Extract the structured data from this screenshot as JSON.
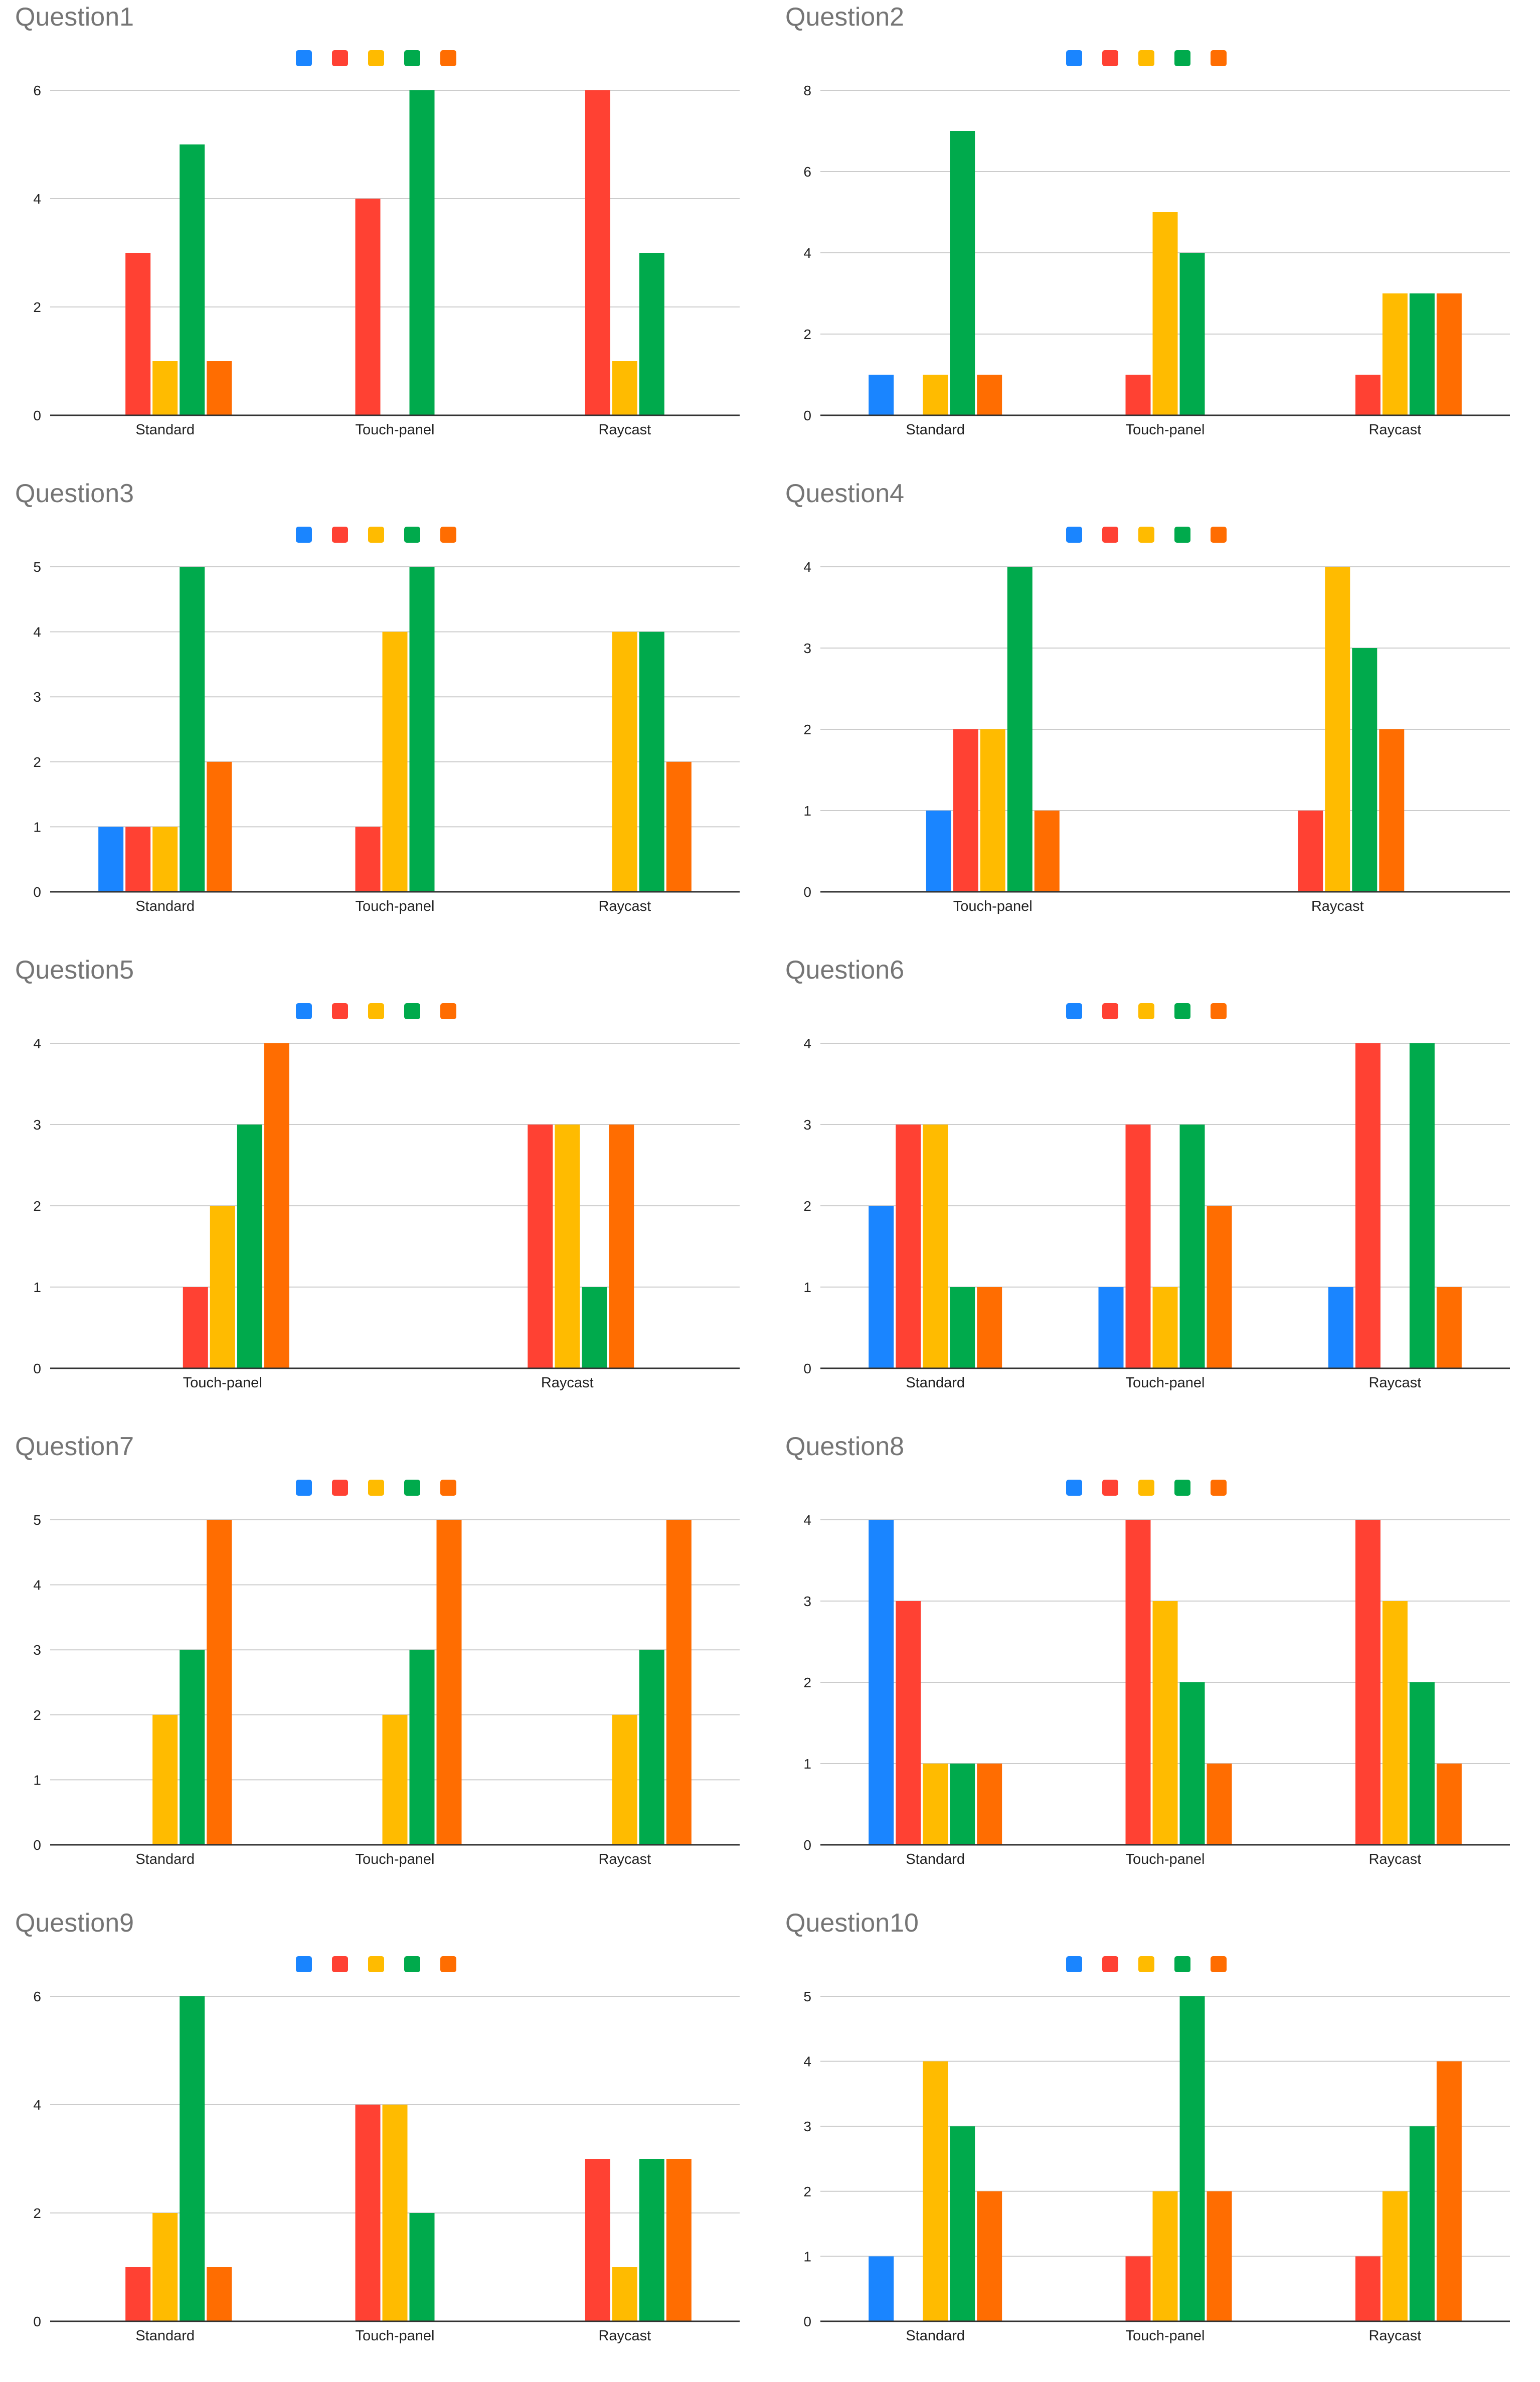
{
  "legend_colors": [
    "#1a85ff",
    "#ff4133",
    "#ffbb00",
    "#00aa4c",
    "#ff6d01"
  ],
  "axis_color": "#333333",
  "grid_color": "#cccccc",
  "chart_data": [
    {
      "type": "bar",
      "title": "Question1",
      "categories": [
        "Standard",
        "Touch-panel",
        "Raycast"
      ],
      "yticks": [
        0,
        2,
        4,
        6
      ],
      "ylim": [
        0,
        6
      ],
      "series": [
        {
          "color": "#1a85ff",
          "values": [
            0,
            0,
            0
          ]
        },
        {
          "color": "#ff4133",
          "values": [
            3,
            4,
            6
          ]
        },
        {
          "color": "#ffbb00",
          "values": [
            1,
            0,
            1
          ]
        },
        {
          "color": "#00aa4c",
          "values": [
            5,
            6,
            3
          ]
        },
        {
          "color": "#ff6d01",
          "values": [
            1,
            0,
            0
          ]
        }
      ]
    },
    {
      "type": "bar",
      "title": "Question2",
      "categories": [
        "Standard",
        "Touch-panel",
        "Raycast"
      ],
      "yticks": [
        0,
        2,
        4,
        6,
        8
      ],
      "ylim": [
        0,
        8
      ],
      "series": [
        {
          "color": "#1a85ff",
          "values": [
            1,
            0,
            0
          ]
        },
        {
          "color": "#ff4133",
          "values": [
            0,
            1,
            1
          ]
        },
        {
          "color": "#ffbb00",
          "values": [
            1,
            5,
            3
          ]
        },
        {
          "color": "#00aa4c",
          "values": [
            7,
            4,
            3
          ]
        },
        {
          "color": "#ff6d01",
          "values": [
            1,
            0,
            3
          ]
        }
      ]
    },
    {
      "type": "bar",
      "title": "Question3",
      "categories": [
        "Standard",
        "Touch-panel",
        "Raycast"
      ],
      "yticks": [
        0,
        1,
        2,
        3,
        4,
        5
      ],
      "ylim": [
        0,
        5
      ],
      "series": [
        {
          "color": "#1a85ff",
          "values": [
            1,
            0,
            0
          ]
        },
        {
          "color": "#ff4133",
          "values": [
            1,
            1,
            0
          ]
        },
        {
          "color": "#ffbb00",
          "values": [
            1,
            4,
            4
          ]
        },
        {
          "color": "#00aa4c",
          "values": [
            5,
            5,
            4
          ]
        },
        {
          "color": "#ff6d01",
          "values": [
            2,
            0,
            2
          ]
        }
      ]
    },
    {
      "type": "bar",
      "title": "Question4",
      "categories": [
        "Touch-panel",
        "Raycast"
      ],
      "yticks": [
        0,
        1,
        2,
        3,
        4
      ],
      "ylim": [
        0,
        4
      ],
      "series": [
        {
          "color": "#1a85ff",
          "values": [
            1,
            0
          ]
        },
        {
          "color": "#ff4133",
          "values": [
            2,
            1
          ]
        },
        {
          "color": "#ffbb00",
          "values": [
            2,
            4
          ]
        },
        {
          "color": "#00aa4c",
          "values": [
            4,
            3
          ]
        },
        {
          "color": "#ff6d01",
          "values": [
            1,
            2
          ]
        }
      ]
    },
    {
      "type": "bar",
      "title": "Question5",
      "categories": [
        "Touch-panel",
        "Raycast"
      ],
      "yticks": [
        0,
        1,
        2,
        3,
        4
      ],
      "ylim": [
        0,
        4
      ],
      "series": [
        {
          "color": "#1a85ff",
          "values": [
            0,
            0
          ]
        },
        {
          "color": "#ff4133",
          "values": [
            1,
            3
          ]
        },
        {
          "color": "#ffbb00",
          "values": [
            2,
            3
          ]
        },
        {
          "color": "#00aa4c",
          "values": [
            3,
            1
          ]
        },
        {
          "color": "#ff6d01",
          "values": [
            4,
            3
          ]
        }
      ]
    },
    {
      "type": "bar",
      "title": "Question6",
      "categories": [
        "Standard",
        "Touch-panel",
        "Raycast"
      ],
      "yticks": [
        0,
        1,
        2,
        3,
        4
      ],
      "ylim": [
        0,
        4
      ],
      "series": [
        {
          "color": "#1a85ff",
          "values": [
            2,
            1,
            1
          ]
        },
        {
          "color": "#ff4133",
          "values": [
            3,
            3,
            4
          ]
        },
        {
          "color": "#ffbb00",
          "values": [
            3,
            1,
            0
          ]
        },
        {
          "color": "#00aa4c",
          "values": [
            1,
            3,
            4
          ]
        },
        {
          "color": "#ff6d01",
          "values": [
            1,
            2,
            1
          ]
        }
      ]
    },
    {
      "type": "bar",
      "title": "Question7",
      "categories": [
        "Standard",
        "Touch-panel",
        "Raycast"
      ],
      "yticks": [
        0,
        1,
        2,
        3,
        4,
        5
      ],
      "ylim": [
        0,
        5
      ],
      "series": [
        {
          "color": "#1a85ff",
          "values": [
            0,
            0,
            0
          ]
        },
        {
          "color": "#ff4133",
          "values": [
            0,
            0,
            0
          ]
        },
        {
          "color": "#ffbb00",
          "values": [
            2,
            2,
            2
          ]
        },
        {
          "color": "#00aa4c",
          "values": [
            3,
            3,
            3
          ]
        },
        {
          "color": "#ff6d01",
          "values": [
            5,
            5,
            5
          ]
        }
      ]
    },
    {
      "type": "bar",
      "title": "Question8",
      "categories": [
        "Standard",
        "Touch-panel",
        "Raycast"
      ],
      "yticks": [
        0,
        1,
        2,
        3,
        4
      ],
      "ylim": [
        0,
        4
      ],
      "series": [
        {
          "color": "#1a85ff",
          "values": [
            4,
            0,
            0
          ]
        },
        {
          "color": "#ff4133",
          "values": [
            3,
            4,
            4
          ]
        },
        {
          "color": "#ffbb00",
          "values": [
            1,
            3,
            3
          ]
        },
        {
          "color": "#00aa4c",
          "values": [
            1,
            2,
            2
          ]
        },
        {
          "color": "#ff6d01",
          "values": [
            1,
            1,
            1
          ]
        }
      ]
    },
    {
      "type": "bar",
      "title": "Question9",
      "categories": [
        "Standard",
        "Touch-panel",
        "Raycast"
      ],
      "yticks": [
        0,
        2,
        4,
        6
      ],
      "ylim": [
        0,
        6
      ],
      "series": [
        {
          "color": "#1a85ff",
          "values": [
            0,
            0,
            0
          ]
        },
        {
          "color": "#ff4133",
          "values": [
            1,
            4,
            3
          ]
        },
        {
          "color": "#ffbb00",
          "values": [
            2,
            4,
            1
          ]
        },
        {
          "color": "#00aa4c",
          "values": [
            6,
            2,
            3
          ]
        },
        {
          "color": "#ff6d01",
          "values": [
            1,
            0,
            3
          ]
        }
      ]
    },
    {
      "type": "bar",
      "title": "Question10",
      "categories": [
        "Standard",
        "Touch-panel",
        "Raycast"
      ],
      "yticks": [
        0,
        1,
        2,
        3,
        4,
        5
      ],
      "ylim": [
        0,
        5
      ],
      "series": [
        {
          "color": "#1a85ff",
          "values": [
            1,
            0,
            0
          ]
        },
        {
          "color": "#ff4133",
          "values": [
            0,
            1,
            1
          ]
        },
        {
          "color": "#ffbb00",
          "values": [
            4,
            2,
            2
          ]
        },
        {
          "color": "#00aa4c",
          "values": [
            3,
            5,
            3
          ]
        },
        {
          "color": "#ff6d01",
          "values": [
            2,
            2,
            4
          ]
        }
      ]
    }
  ]
}
